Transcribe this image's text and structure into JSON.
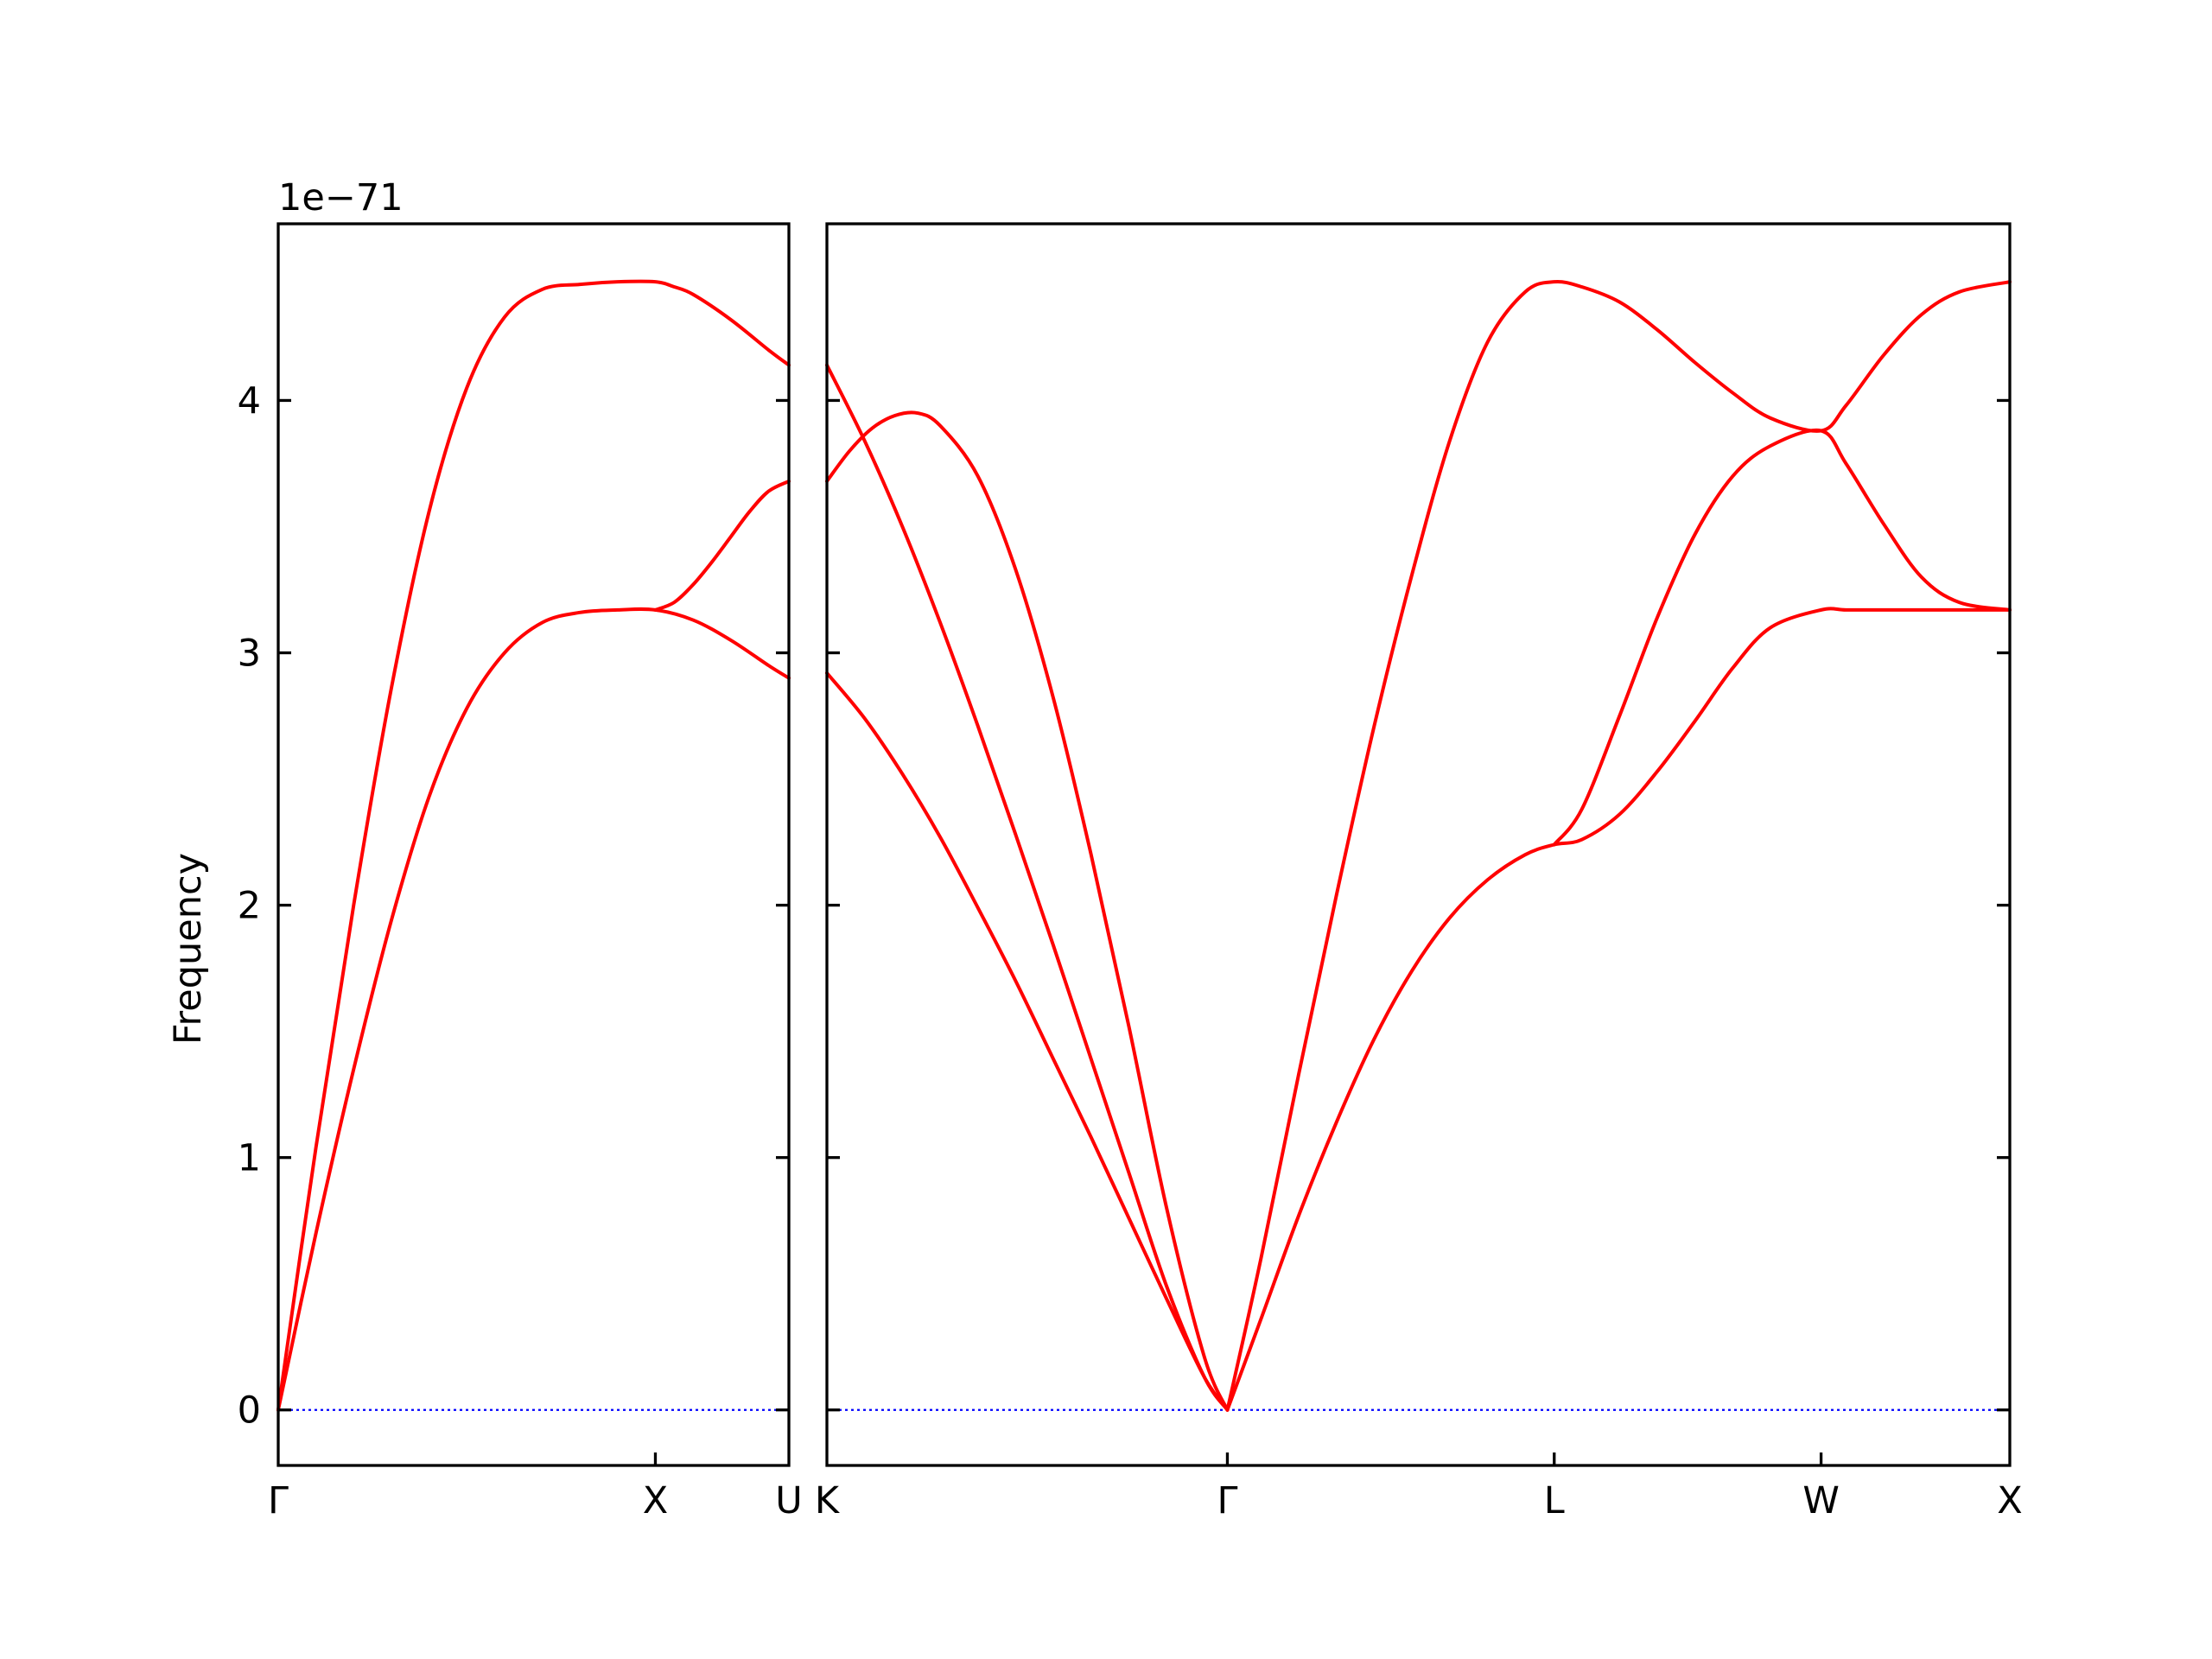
{
  "chart_data": {
    "type": "line",
    "ylabel": "Frequency",
    "offset_text": "1e−71",
    "ylim": [
      -0.22,
      4.7
    ],
    "yticks": [
      "0",
      "1",
      "2",
      "3",
      "4"
    ],
    "colors": {
      "bands": "#ff0000",
      "zero_line": "#0000ff",
      "axes": "#000000"
    },
    "panels": [
      {
        "xticks": [
          {
            "label": "Γ",
            "x": 0.0
          },
          {
            "label": "X",
            "x": 1.0
          },
          {
            "label": "U",
            "x": 1.354
          }
        ],
        "series": [
          {
            "x": [
              0.0,
              0.1,
              0.2,
              0.3,
              0.4,
              0.5,
              0.6,
              0.7,
              0.8,
              0.9,
              1.0,
              1.1,
              1.2,
              1.3,
              1.354
            ],
            "values": [
              0.0,
              0.7,
              1.35,
              1.94,
              2.43,
              2.78,
              3.0,
              3.12,
              3.16,
              3.17,
              3.17,
              3.13,
              3.05,
              2.95,
              2.9
            ]
          },
          {
            "x": [
              0.0,
              0.1,
              0.2,
              0.3,
              0.4,
              0.5,
              0.6,
              0.7,
              0.8,
              0.9,
              1.0,
              1.05,
              1.1,
              1.2,
              1.3,
              1.354
            ],
            "values": [
              0.0,
              1.04,
              2.0,
              2.86,
              3.56,
              4.05,
              4.33,
              4.44,
              4.46,
              4.47,
              4.47,
              4.45,
              4.42,
              4.32,
              4.2,
              4.14
            ]
          },
          {
            "x": [
              1.0,
              1.05,
              1.1,
              1.15,
              1.2,
              1.25,
              1.3,
              1.354
            ],
            "values": [
              3.17,
              3.2,
              3.27,
              3.36,
              3.46,
              3.56,
              3.64,
              3.68
            ]
          }
        ]
      },
      {
        "xticks": [
          {
            "label": "K",
            "x": 0.0
          },
          {
            "label": "Γ",
            "x": 1.061
          },
          {
            "label": "L",
            "x": 1.927
          },
          {
            "label": "W",
            "x": 2.634
          },
          {
            "label": "X",
            "x": 3.134
          }
        ],
        "series": [
          {
            "x": [
              0.0,
              0.1,
              0.2,
              0.3,
              0.4,
              0.5,
              0.6,
              0.7,
              0.8,
              0.9,
              1.0,
              1.061
            ],
            "values": [
              2.92,
              2.74,
              2.52,
              2.27,
              1.99,
              1.7,
              1.39,
              1.08,
              0.76,
              0.44,
              0.13,
              0.0
            ]
          },
          {
            "x": [
              0.0,
              0.1,
              0.2,
              0.3,
              0.4,
              0.5,
              0.6,
              0.7,
              0.8,
              0.9,
              1.0,
              1.061
            ],
            "values": [
              4.14,
              3.84,
              3.5,
              3.12,
              2.71,
              2.28,
              1.84,
              1.39,
              0.94,
              0.49,
              0.13,
              0.0
            ]
          },
          {
            "x": [
              0.0,
              0.06,
              0.12,
              0.18,
              0.24,
              0.3,
              0.4,
              0.5,
              0.6,
              0.7,
              0.8,
              0.9,
              1.0,
              1.061
            ],
            "values": [
              3.68,
              3.8,
              3.89,
              3.94,
              3.95,
              3.9,
              3.7,
              3.33,
              2.82,
              2.2,
              1.52,
              0.8,
              0.21,
              0.0
            ]
          },
          {
            "x": [
              1.061,
              1.15,
              1.25,
              1.35,
              1.45,
              1.55,
              1.65,
              1.75,
              1.85,
              1.927,
              2.0,
              2.1,
              2.2,
              2.3,
              2.4,
              2.5,
              2.634,
              2.7,
              2.8,
              2.9,
              3.0,
              3.134
            ],
            "values": [
              0.0,
              0.36,
              0.77,
              1.14,
              1.47,
              1.74,
              1.95,
              2.1,
              2.2,
              2.24,
              2.26,
              2.36,
              2.53,
              2.73,
              2.94,
              3.1,
              3.17,
              3.17,
              3.17,
              3.17,
              3.17,
              3.17
            ]
          },
          {
            "x": [
              1.061,
              1.15,
              1.25,
              1.35,
              1.45,
              1.55,
              1.65,
              1.75,
              1.85,
              1.927,
              2.0,
              2.1,
              2.2,
              2.3,
              2.4,
              2.5,
              2.634,
              2.7,
              2.8,
              2.9,
              3.0,
              3.134
            ],
            "values": [
              0.0,
              0.6,
              1.33,
              2.04,
              2.71,
              3.31,
              3.84,
              4.23,
              4.43,
              4.47,
              4.45,
              4.39,
              4.28,
              4.15,
              4.03,
              3.93,
              3.88,
              3.98,
              4.18,
              4.34,
              4.43,
              4.47
            ]
          },
          {
            "x": [
              1.927,
              2.0,
              2.1,
              2.2,
              2.3,
              2.4,
              2.5,
              2.634,
              2.7,
              2.8,
              2.9,
              3.0,
              3.134
            ],
            "values": [
              2.24,
              2.38,
              2.75,
              3.14,
              3.47,
              3.7,
              3.82,
              3.88,
              3.75,
              3.51,
              3.3,
              3.2,
              3.17
            ]
          }
        ]
      }
    ]
  }
}
